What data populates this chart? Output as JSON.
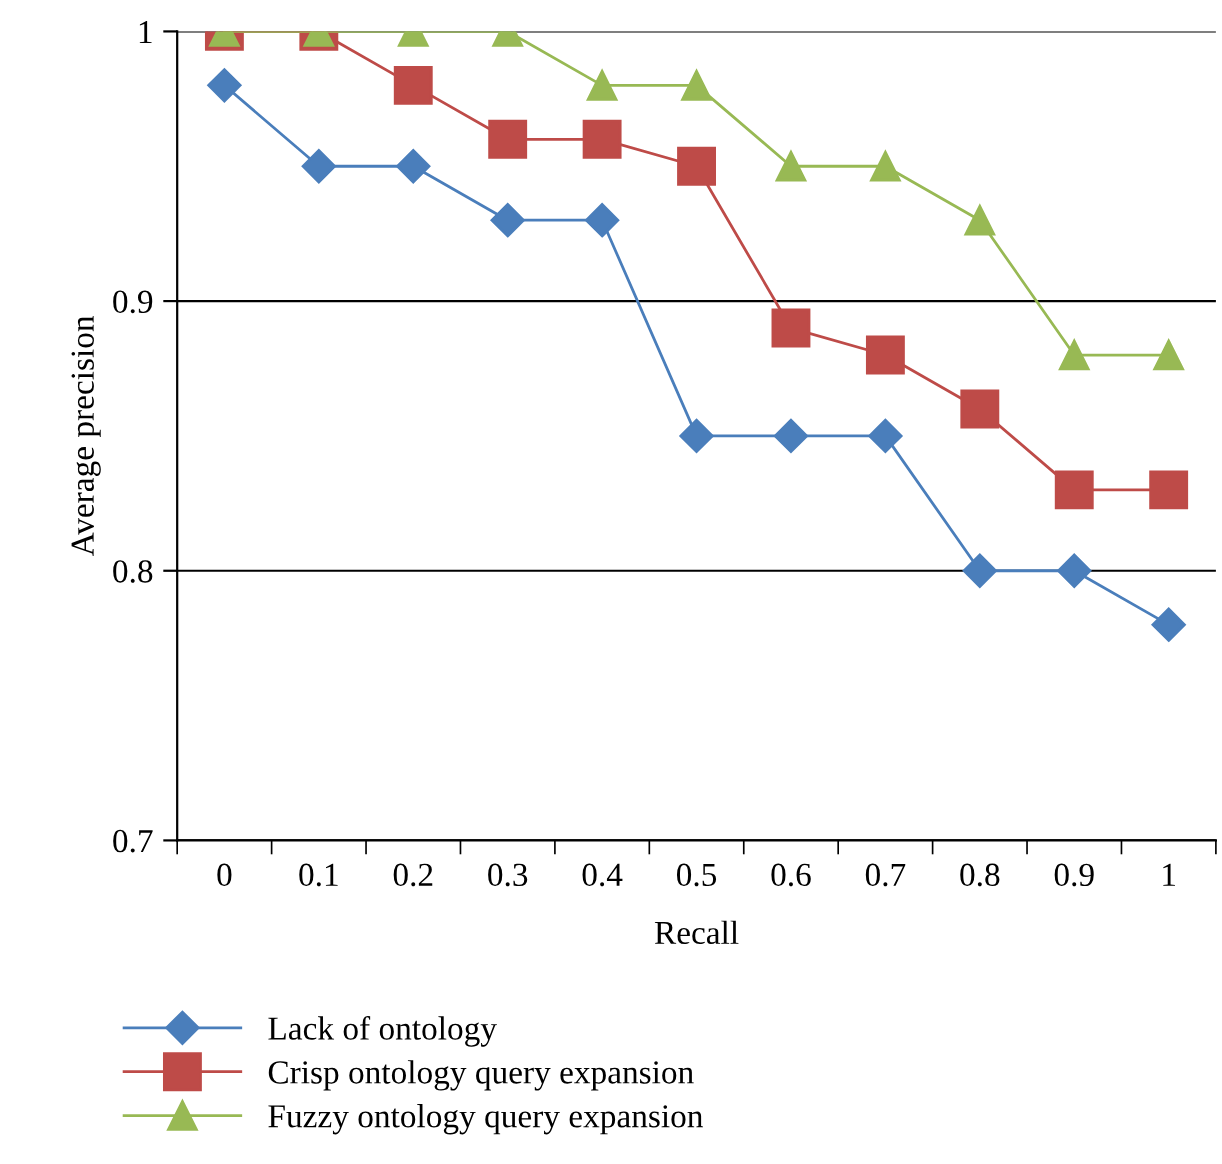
{
  "chart_data": {
    "type": "line",
    "xlabel": "Recall",
    "ylabel": "Average precision",
    "categories": [
      "0",
      "0.1",
      "0.2",
      "0.3",
      "0.4",
      "0.5",
      "0.6",
      "0.7",
      "0.8",
      "0.9",
      "1"
    ],
    "series": [
      {
        "name": "Lack of ontology",
        "color": "#4a7ebb",
        "marker": "diamond",
        "values": [
          0.98,
          0.95,
          0.95,
          0.93,
          0.93,
          0.85,
          0.85,
          0.85,
          0.8,
          0.8,
          0.78
        ]
      },
      {
        "name": "Crisp ontology query expansion",
        "color": "#be4b48",
        "marker": "square",
        "values": [
          1,
          1,
          0.98,
          0.96,
          0.96,
          0.95,
          0.89,
          0.88,
          0.86,
          0.83,
          0.83
        ]
      },
      {
        "name": "Fuzzy ontology query expansion",
        "color": "#98b954",
        "marker": "triangle",
        "values": [
          1,
          1,
          1,
          1,
          0.98,
          0.98,
          0.95,
          0.95,
          0.93,
          0.88,
          0.88
        ]
      }
    ],
    "ylim": [
      0.7,
      1
    ],
    "yticks": [
      {
        "value": 0.7,
        "label": "0.7"
      },
      {
        "value": 0.8,
        "label": "0.8"
      },
      {
        "value": 0.9,
        "label": "0.9"
      },
      {
        "value": 1,
        "label": "1"
      }
    ],
    "grid": "y",
    "legend": "bottom",
    "line_style": "solid"
  }
}
